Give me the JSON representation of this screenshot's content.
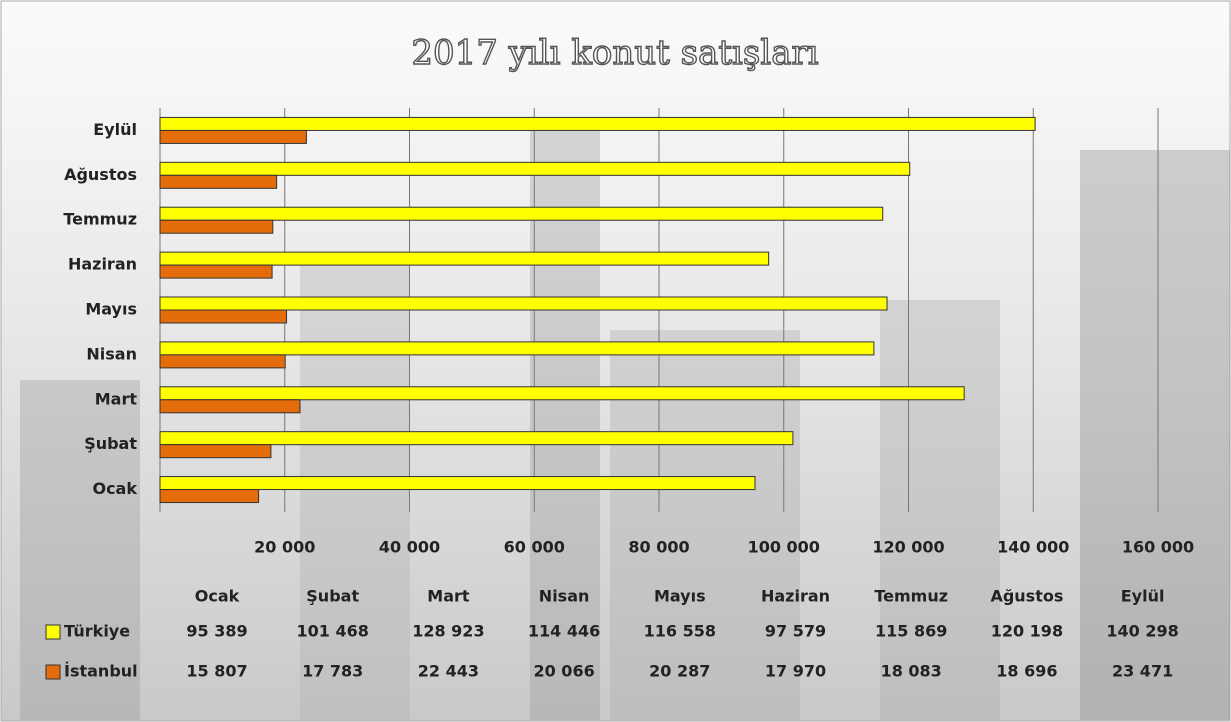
{
  "chart_data": {
    "type": "bar",
    "orientation": "horizontal",
    "title": "2017 yılı konut satışları",
    "categories": [
      "Ocak",
      "Şubat",
      "Mart",
      "Nisan",
      "Mayıs",
      "Haziran",
      "Temmuz",
      "Ağustos",
      "Eylül"
    ],
    "series": [
      {
        "name": "Türkiye",
        "color": "#ffff00",
        "values": [
          95389,
          101468,
          128923,
          114446,
          116558,
          97579,
          115869,
          120198,
          140298
        ],
        "value_labels": [
          "95 389",
          "101 468",
          "128 923",
          "114 446",
          "116 558",
          "97 579",
          "115 869",
          "120 198",
          "140 298"
        ]
      },
      {
        "name": "İstanbul",
        "color": "#e46c0a",
        "values": [
          15807,
          17783,
          22443,
          20066,
          20287,
          17970,
          18083,
          18696,
          23471
        ],
        "value_labels": [
          "15 807",
          "17 783",
          "22 443",
          "20 066",
          "20 287",
          "17 970",
          "18 083",
          "18 696",
          "23 471"
        ]
      }
    ],
    "xlim": [
      0,
      160000
    ],
    "xticks": [
      {
        "value": 20000,
        "label": "20 000"
      },
      {
        "value": 40000,
        "label": "40 000"
      },
      {
        "value": 60000,
        "label": "60 000"
      },
      {
        "value": 80000,
        "label": "80 000"
      },
      {
        "value": 100000,
        "label": "100 000"
      },
      {
        "value": 120000,
        "label": "120 000"
      },
      {
        "value": 140000,
        "label": "140 000"
      },
      {
        "value": 160000,
        "label": "160 000"
      }
    ],
    "grid": true,
    "data_table": true
  }
}
